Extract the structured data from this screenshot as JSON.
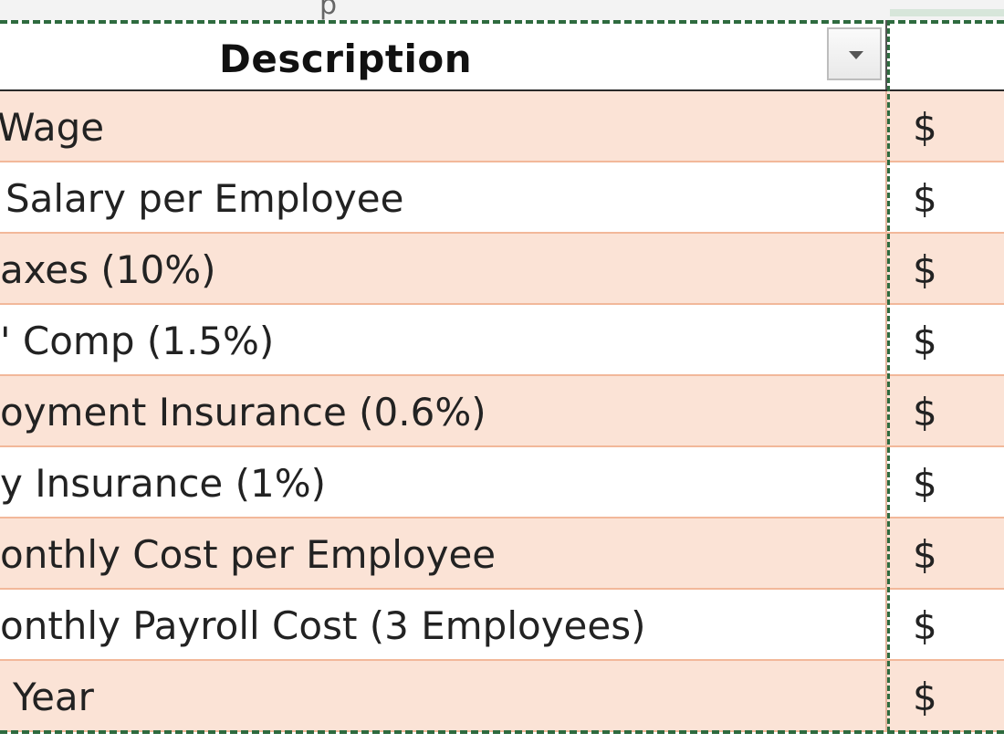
{
  "top_clip_text": "p",
  "table": {
    "header": {
      "description": "Description",
      "amount": ""
    },
    "rows": [
      {
        "description": "Wage",
        "currency": "$"
      },
      {
        "description": "Salary per Employee",
        "currency": "$"
      },
      {
        "description": "axes (10%)",
        "currency": "$"
      },
      {
        "description": "' Comp (1.5%)",
        "currency": "$"
      },
      {
        "description": "oyment Insurance (0.6%)",
        "currency": "$"
      },
      {
        "description": "y Insurance (1%)",
        "currency": "$"
      },
      {
        "description": "onthly Cost per Employee",
        "currency": "$"
      },
      {
        "description": "onthly Payroll Cost (3 Employees)",
        "currency": "$"
      },
      {
        "description": "Year",
        "currency": "$"
      }
    ]
  },
  "colors": {
    "band_fill": "#fbe3d6",
    "band_border": "#f2b89a",
    "selection_border": "#2e6b3f"
  },
  "icons": {
    "filter": "filter-dropdown-icon"
  }
}
